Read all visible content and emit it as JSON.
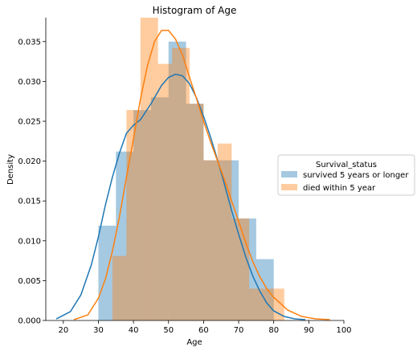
{
  "chart_data": {
    "type": "histogram",
    "title": "Histogram of Age",
    "xlabel": "Age",
    "ylabel": "Density",
    "xlim": [
      15,
      100
    ],
    "ylim": [
      0,
      0.038
    ],
    "xticks": [
      20,
      30,
      40,
      50,
      60,
      70,
      80,
      90,
      100
    ],
    "yticks": [
      0.0,
      0.005,
      0.01,
      0.015,
      0.02,
      0.025,
      0.03,
      0.035
    ],
    "grid": false,
    "legend": {
      "title": "Survival_status",
      "placement": "center-right"
    },
    "series": [
      {
        "name": "survived 5 years or longer",
        "color": "#1f77b4",
        "bin_edges": [
          30,
          35,
          40,
          45,
          50,
          55,
          60,
          65,
          70,
          75,
          80
        ],
        "density": [
          0.0119,
          0.0212,
          0.0264,
          0.028,
          0.035,
          0.0272,
          0.0201,
          0.0201,
          0.0128,
          0.0077
        ],
        "kde_x": [
          18,
          22,
          25,
          28,
          30,
          32,
          34,
          36,
          38,
          40,
          42,
          45,
          48,
          50,
          52,
          54,
          56,
          58,
          60,
          62,
          64,
          66,
          68,
          70,
          72,
          74,
          76,
          78,
          80,
          83,
          86,
          89
        ],
        "kde_y": [
          0.0002,
          0.0011,
          0.0032,
          0.007,
          0.0105,
          0.0145,
          0.018,
          0.021,
          0.0235,
          0.0245,
          0.0252,
          0.0272,
          0.0295,
          0.0305,
          0.0309,
          0.0307,
          0.0297,
          0.0279,
          0.0256,
          0.023,
          0.0201,
          0.017,
          0.0138,
          0.0108,
          0.008,
          0.0056,
          0.0037,
          0.0022,
          0.0012,
          0.0005,
          0.0002,
          0.0001
        ]
      },
      {
        "name": "died within 5 year",
        "color": "#ff7f0e",
        "bin_edges": [
          34,
          38,
          42,
          47,
          51,
          56,
          60,
          64,
          68,
          73,
          77,
          83
        ],
        "density": [
          0.0081,
          0.0264,
          0.038,
          0.0322,
          0.0342,
          0.0272,
          0.0201,
          0.0222,
          0.0128,
          0.004,
          0.004
        ],
        "kde_x": [
          23,
          27,
          30,
          32,
          34,
          36,
          38,
          40,
          42,
          44,
          46,
          48,
          50,
          52,
          54,
          56,
          58,
          60,
          62,
          64,
          66,
          68,
          70,
          72,
          74,
          76,
          78,
          80,
          84,
          88,
          92,
          96
        ],
        "kde_y": [
          0.0001,
          0.0007,
          0.0028,
          0.0052,
          0.0087,
          0.013,
          0.018,
          0.0228,
          0.0278,
          0.032,
          0.035,
          0.0364,
          0.0364,
          0.0353,
          0.0333,
          0.0305,
          0.0278,
          0.025,
          0.0224,
          0.02,
          0.0176,
          0.015,
          0.0124,
          0.0098,
          0.0074,
          0.0055,
          0.004,
          0.0029,
          0.0013,
          0.0005,
          0.0002,
          0.0001
        ]
      }
    ]
  }
}
